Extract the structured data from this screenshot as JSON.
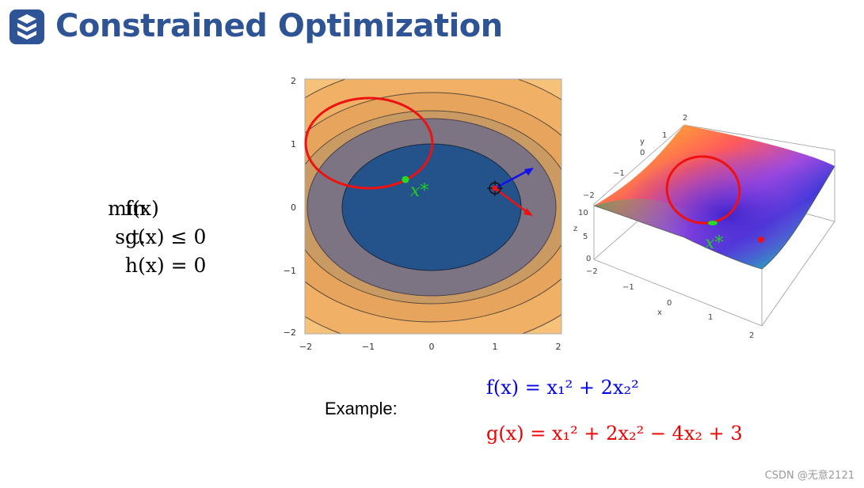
{
  "title": "Constrained Optimization",
  "problem": {
    "objective_label": "min",
    "objective_expr": "f(x)",
    "constraint_label": "s.t.",
    "inequality_expr": "g(x) ≤ 0",
    "equality_expr": "h(x) = 0"
  },
  "contour_plot": {
    "x_ticks": [
      "−2",
      "−1",
      "0",
      "1",
      "2"
    ],
    "y_ticks": [
      "2",
      "1",
      "0",
      "−1",
      "−2"
    ],
    "optimum_label": "x*"
  },
  "surface_plot": {
    "y_axis_label": "y",
    "y_ticks": [
      "2",
      "1",
      "0",
      "−1",
      "−2"
    ],
    "z_axis_label": "z",
    "z_ticks": [
      "10",
      "5",
      "0"
    ],
    "x_axis_label": "x",
    "x_ticks": [
      "−2",
      "−1",
      "0",
      "1",
      "2"
    ],
    "optimum_label": "x*"
  },
  "example": {
    "label": "Example:",
    "f_eq": "f(x) = x₁² + 2x₂²",
    "g_eq": "g(x) = x₁² + 2x₂² − 4x₂ + 3"
  },
  "watermark": "CSDN @无意2121",
  "colors": {
    "title": "#2f5496",
    "f_equation": "#0000ee",
    "g_equation": "#ee0000",
    "optimum": "#22dd22"
  }
}
